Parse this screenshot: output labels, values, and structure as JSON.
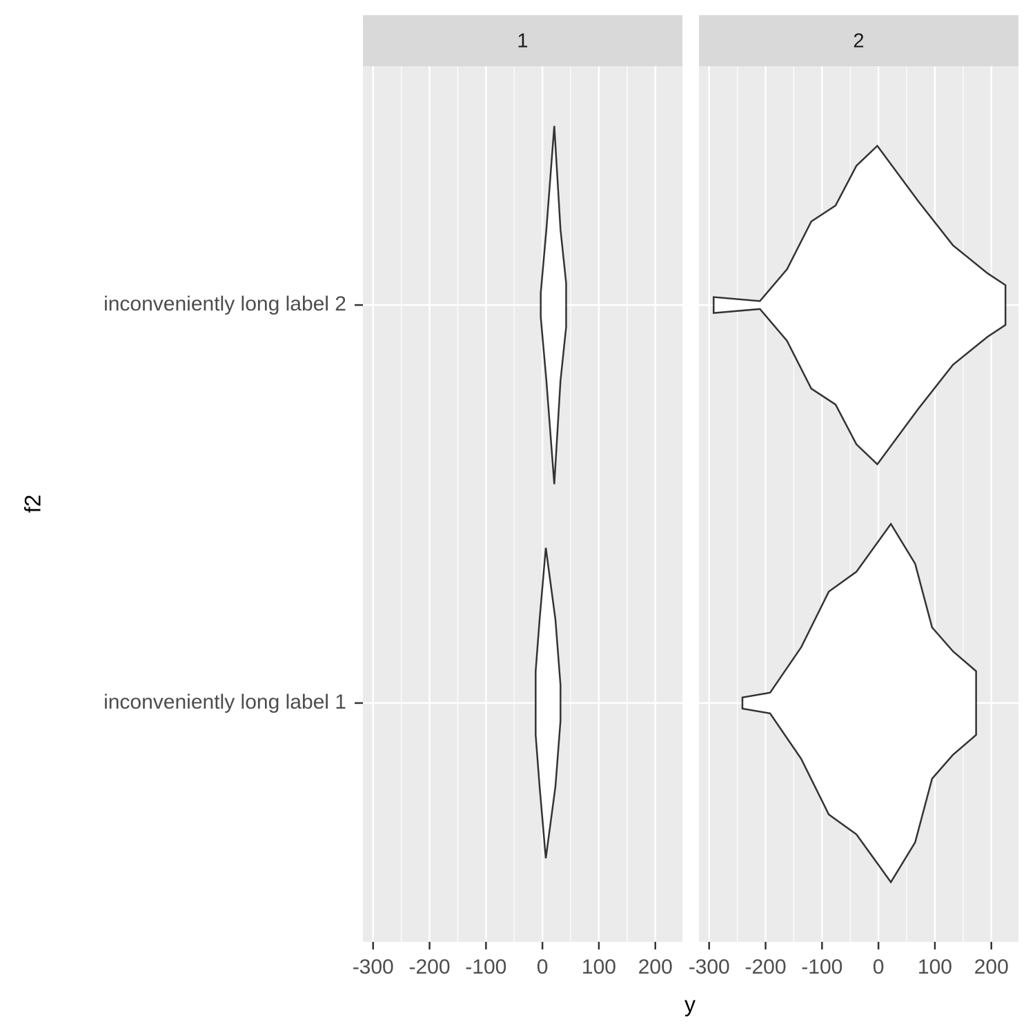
{
  "chart_data": {
    "type": "violin",
    "x_label": "y",
    "y_label": "f2",
    "categories": [
      "inconveniently long label 1",
      "inconveniently long label 2"
    ],
    "xlim": [
      -318,
      248
    ],
    "xticks": [
      -300,
      -200,
      -100,
      0,
      100,
      200
    ],
    "xminor": [
      -250,
      -150,
      -50,
      50,
      150
    ],
    "ylim": [
      0.4,
      2.6
    ],
    "grid": true,
    "panel_color": "#ebebeb",
    "strip_color": "#d9d9d9",
    "fill": "#ffffff",
    "line_color": "#333333",
    "facets": [
      {
        "name": "1",
        "violins": [
          {
            "values": [
              -12,
              -12,
              -5,
              6,
              23,
              32,
              32
            ],
            "widths": [
              0,
              0.08,
              0.21,
              0.39,
              0.21,
              0.045,
              0
            ]
          },
          {
            "values": [
              -3,
              -3,
              7,
              21,
              32,
              42,
              42
            ],
            "widths": [
              0,
              0.03,
              0.19,
              0.45,
              0.19,
              0.055,
              0
            ]
          }
        ]
      },
      {
        "name": "2",
        "violins": [
          {
            "values": [
              -241,
              -241,
              -192,
              -137,
              -88,
              -39,
              22,
              65,
              95,
              132,
              173,
              173
            ],
            "widths": [
              0,
              0.014,
              0.026,
              0.14,
              0.28,
              0.33,
              0.45,
              0.35,
              0.19,
              0.13,
              0.08,
              0
            ]
          },
          {
            "values": [
              -292,
              -292,
              -210,
              -162,
              -119,
              -76,
              -39,
              -2,
              71,
              132,
              193,
              225,
              225
            ],
            "widths": [
              0,
              0.02,
              0.01,
              0.09,
              0.21,
              0.25,
              0.35,
              0.4,
              0.26,
              0.15,
              0.08,
              0.05,
              0
            ]
          }
        ]
      }
    ]
  }
}
